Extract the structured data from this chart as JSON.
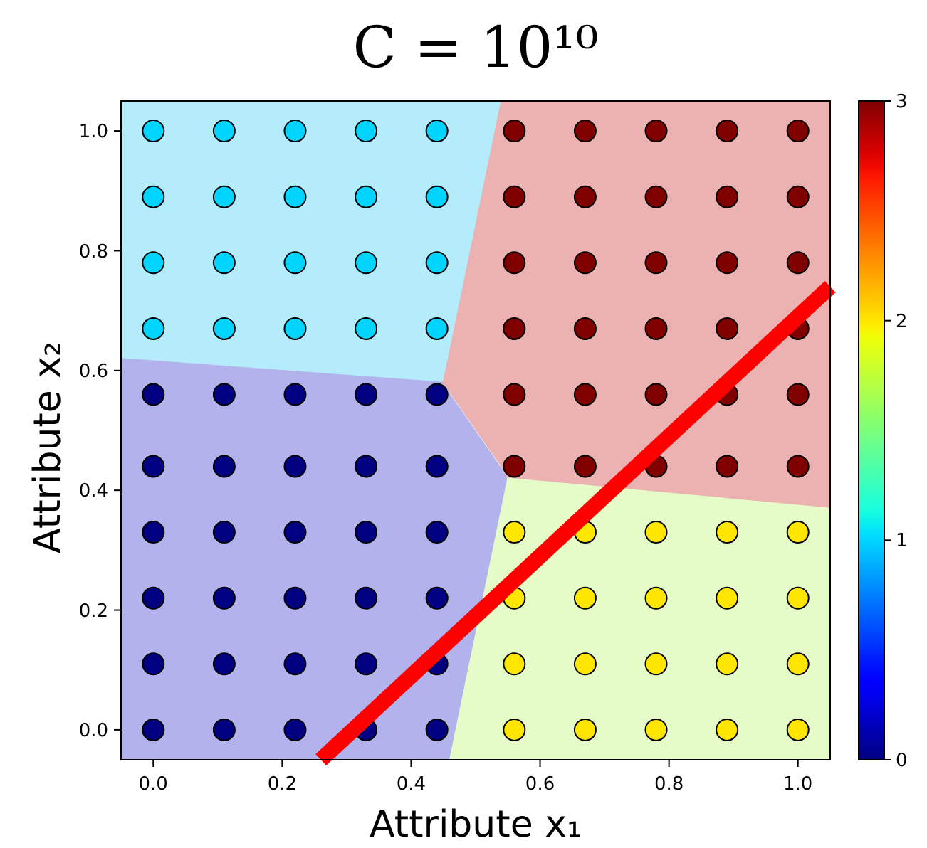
{
  "chart_data": {
    "type": "scatter",
    "title": "C = 10¹⁰",
    "xlabel": "Attribute x₁",
    "ylabel": "Attribute x₂",
    "xlim": [
      -0.05,
      1.05
    ],
    "ylim": [
      -0.05,
      1.05
    ],
    "xticks": [
      {
        "value": 0,
        "label": "0.0"
      },
      0.2,
      0.4,
      0.6,
      0.8,
      {
        "value": 1,
        "label": "1.0"
      }
    ],
    "yticks": [
      {
        "value": 0,
        "label": "0.0"
      },
      0.2,
      0.4,
      0.6,
      0.8,
      {
        "value": 1,
        "label": "1.0"
      }
    ],
    "clim": [
      0,
      3
    ],
    "cticks": [
      0,
      1,
      2,
      3
    ],
    "series": [
      {
        "type": "line",
        "color": "#b4ecfb",
        "x": [
          -0.05,
          0.45,
          0.54
        ],
        "values": [
          null,
          null,
          null
        ],
        "lower": [
          0.62,
          0.58,
          1.05
        ],
        "upper": [
          1.05,
          1.05,
          1.05
        ]
      },
      {
        "type": "line",
        "color": "#b2b2ec",
        "x": [
          -0.05,
          0.45,
          0.46,
          0.55
        ],
        "values": [
          null,
          null,
          null,
          null
        ],
        "lower": [
          -0.05,
          -0.05,
          -0.05,
          0.42
        ],
        "upper": [
          0.62,
          0.58,
          0.56,
          0.42
        ]
      },
      {
        "type": "line",
        "color": "#ecb2b2",
        "x": [
          0.45,
          0.54,
          0.55,
          1.05
        ],
        "values": [
          null,
          null,
          null,
          null
        ],
        "lower": [
          0.58,
          0.44,
          0.42,
          0.37
        ],
        "upper": [
          0.58,
          1.05,
          1.05,
          1.05
        ]
      },
      {
        "type": "line",
        "color": "#e6fcc8",
        "x": [
          0.46,
          0.55,
          1.05
        ],
        "values": [
          null,
          null,
          null
        ],
        "lower": [
          -0.05,
          -0.05,
          -0.05
        ],
        "upper": [
          -0.05,
          0.42,
          0.37
        ]
      },
      {
        "marker": "circle",
        "x": [
          0,
          0,
          0,
          0,
          0,
          0,
          0.11,
          0.11,
          0.11,
          0.11,
          0.11,
          0.11,
          0.22,
          0.22,
          0.22,
          0.22,
          0.22,
          0.22,
          0.33,
          0.33,
          0.33,
          0.33,
          0.33,
          0.33,
          0.44,
          0.44,
          0.44,
          0.44,
          0.44,
          0.44
        ],
        "values": [
          0,
          0.11,
          0.22,
          0.33,
          0.44,
          0.56,
          0,
          0.11,
          0.22,
          0.33,
          0.44,
          0.56,
          0,
          0.11,
          0.22,
          0.33,
          0.44,
          0.56,
          0,
          0.11,
          0.22,
          0.33,
          0.44,
          0.56,
          0,
          0.11,
          0.22,
          0.33,
          0.44,
          0.56
        ],
        "cvalues": [
          0,
          0,
          0,
          0,
          0,
          0,
          0,
          0,
          0,
          0,
          0,
          0,
          0,
          0,
          0,
          0,
          0,
          0,
          0,
          0,
          0,
          0,
          0,
          0,
          0,
          0,
          0,
          0,
          0,
          0
        ]
      },
      {
        "marker": "circle",
        "x": [
          0,
          0,
          0,
          0,
          0.11,
          0.11,
          0.11,
          0.11,
          0.22,
          0.22,
          0.22,
          0.22,
          0.33,
          0.33,
          0.33,
          0.33,
          0.44,
          0.44,
          0.44,
          0.44
        ],
        "values": [
          0.67,
          0.78,
          0.89,
          1,
          0.67,
          0.78,
          0.89,
          1,
          0.67,
          0.78,
          0.89,
          1,
          0.67,
          0.78,
          0.89,
          1,
          0.67,
          0.78,
          0.89,
          1
        ],
        "cvalues": [
          1,
          1,
          1,
          1,
          1,
          1,
          1,
          1,
          1,
          1,
          1,
          1,
          1,
          1,
          1,
          1,
          1,
          1,
          1,
          1
        ]
      },
      {
        "marker": "circle",
        "x": [
          0.56,
          0.56,
          0.56,
          0.56,
          0.67,
          0.67,
          0.67,
          0.67,
          0.78,
          0.78,
          0.78,
          0.78,
          0.89,
          0.89,
          0.89,
          0.89,
          1,
          1,
          1,
          1
        ],
        "values": [
          0,
          0.11,
          0.22,
          0.33,
          0,
          0.11,
          0.22,
          0.33,
          0,
          0.11,
          0.22,
          0.33,
          0,
          0.11,
          0.22,
          0.33,
          0,
          0.11,
          0.22,
          0.33
        ],
        "cvalues": [
          2,
          2,
          2,
          2,
          2,
          2,
          2,
          2,
          2,
          2,
          2,
          2,
          2,
          2,
          2,
          2,
          2,
          2,
          2,
          2
        ]
      },
      {
        "marker": "circle",
        "x": [
          0.56,
          0.56,
          0.56,
          0.56,
          0.56,
          0.56,
          0.67,
          0.67,
          0.67,
          0.67,
          0.67,
          0.67,
          0.78,
          0.78,
          0.78,
          0.78,
          0.78,
          0.78,
          0.89,
          0.89,
          0.89,
          0.89,
          0.89,
          0.89,
          1,
          1,
          1,
          1,
          1,
          1
        ],
        "values": [
          0.44,
          0.56,
          0.67,
          0.78,
          0.89,
          1,
          0.44,
          0.56,
          0.67,
          0.78,
          0.89,
          1,
          0.44,
          0.56,
          0.67,
          0.78,
          0.89,
          1,
          0.44,
          0.56,
          0.67,
          0.78,
          0.89,
          1,
          0.44,
          0.56,
          0.67,
          0.78,
          0.89,
          1
        ],
        "cvalues": [
          3,
          3,
          3,
          3,
          3,
          3,
          3,
          3,
          3,
          3,
          3,
          3,
          3,
          3,
          3,
          3,
          3,
          3,
          3,
          3,
          3,
          3,
          3,
          3,
          3,
          3,
          3,
          3,
          3,
          3
        ]
      },
      {
        "type": "line",
        "color": "#ff0000",
        "x": [
          0.26,
          1.05
        ],
        "values": [
          -0.05,
          0.74
        ]
      }
    ]
  }
}
